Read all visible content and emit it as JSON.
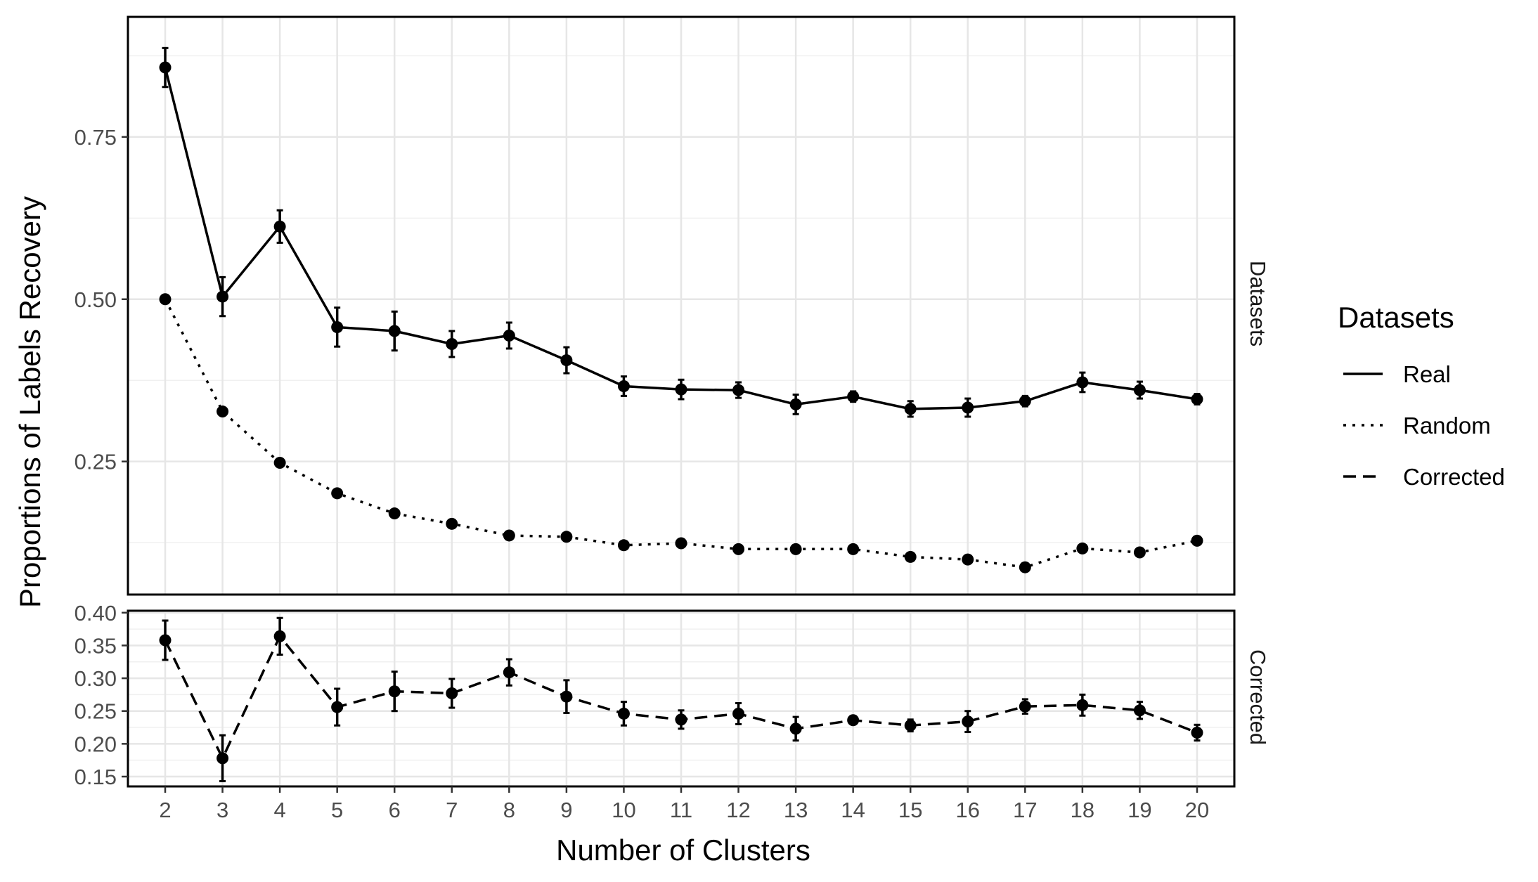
{
  "chart_data": {
    "type": "line",
    "xlabel": "Number of Clusters",
    "ylabel": "Proportions of Labels Recovery",
    "x": [
      2,
      3,
      4,
      5,
      6,
      7,
      8,
      9,
      10,
      11,
      12,
      13,
      14,
      15,
      16,
      17,
      18,
      19,
      20
    ],
    "xlim": [
      1.35,
      20.65
    ],
    "legend": {
      "title": "Datasets",
      "position": "right",
      "entries": [
        "Real",
        "Random",
        "Corrected"
      ]
    },
    "panels": [
      {
        "strip_label": "Datasets",
        "ylim": [
          0.045,
          0.935
        ],
        "y_ticks": [
          0.25,
          0.5,
          0.75
        ],
        "y_tick_labels": [
          "0.25",
          "0.50",
          "0.75"
        ],
        "series": [
          {
            "name": "Real",
            "linetype": "solid",
            "values": [
              0.857,
              0.504,
              0.612,
              0.457,
              0.451,
              0.431,
              0.444,
              0.406,
              0.366,
              0.361,
              0.36,
              0.338,
              0.35,
              0.331,
              0.333,
              0.343,
              0.372,
              0.36,
              0.346
            ],
            "error": [
              0.03,
              0.03,
              0.025,
              0.03,
              0.03,
              0.02,
              0.02,
              0.02,
              0.015,
              0.015,
              0.012,
              0.015,
              0.008,
              0.012,
              0.014,
              0.008,
              0.015,
              0.013,
              0.008
            ]
          },
          {
            "name": "Random",
            "linetype": "dotted",
            "values": [
              0.5,
              0.327,
              0.248,
              0.201,
              0.17,
              0.154,
              0.136,
              0.134,
              0.121,
              0.124,
              0.115,
              0.115,
              0.115,
              0.103,
              0.099,
              0.087,
              0.116,
              0.11,
              0.128
            ],
            "error": [
              0,
              0,
              0,
              0,
              0,
              0,
              0,
              0,
              0,
              0,
              0,
              0,
              0,
              0,
              0,
              0,
              0,
              0,
              0
            ]
          }
        ]
      },
      {
        "strip_label": "Corrected",
        "ylim": [
          0.135,
          0.403
        ],
        "y_ticks": [
          0.15,
          0.2,
          0.25,
          0.3,
          0.35,
          0.4
        ],
        "y_tick_labels": [
          "0.15",
          "0.20",
          "0.25",
          "0.30",
          "0.35",
          "0.40"
        ],
        "series": [
          {
            "name": "Corrected",
            "linetype": "dashed",
            "values": [
              0.358,
              0.178,
              0.364,
              0.256,
              0.28,
              0.277,
              0.309,
              0.272,
              0.246,
              0.237,
              0.246,
              0.223,
              0.236,
              0.228,
              0.234,
              0.257,
              0.259,
              0.251,
              0.217
            ],
            "error": [
              0.03,
              0.035,
              0.028,
              0.028,
              0.03,
              0.022,
              0.02,
              0.025,
              0.018,
              0.014,
              0.016,
              0.018,
              0.006,
              0.009,
              0.016,
              0.011,
              0.016,
              0.013,
              0.012
            ]
          }
        ]
      }
    ]
  }
}
